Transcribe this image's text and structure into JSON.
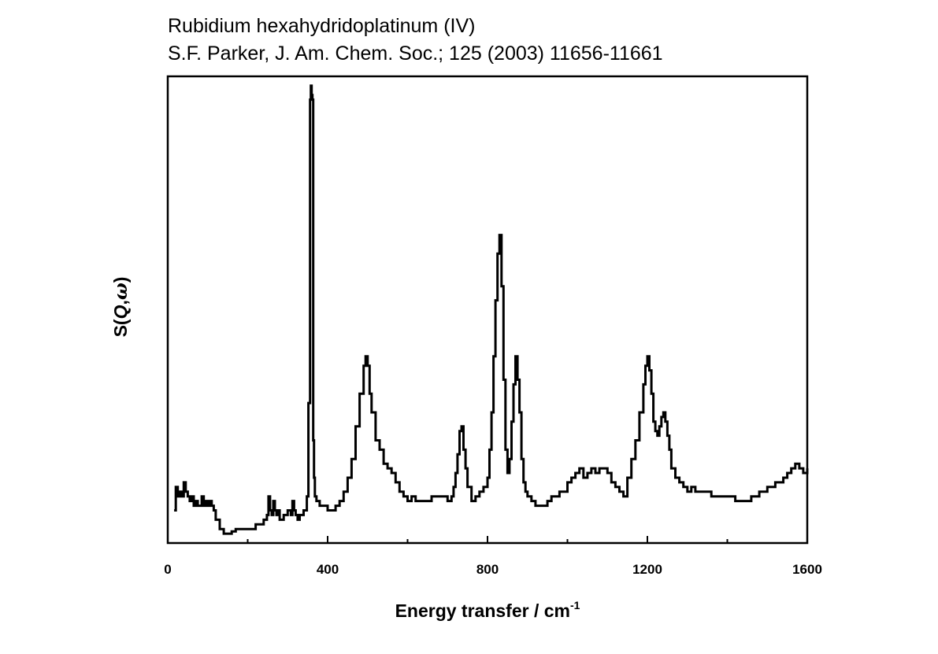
{
  "chart_data": {
    "type": "line",
    "title": "Rubidium hexahydridoplatinum (IV)",
    "subtitle": "S.F. Parker, J. Am. Chem. Soc.; 125 (2003) 11656-11661",
    "xlabel": {
      "text": "Energy transfer / cm",
      "superscript": "-1"
    },
    "ylabel": {
      "prefix": "S(",
      "q": "Q",
      "comma": ",",
      "omega": "ω",
      "suffix": ")"
    },
    "xlim": [
      0,
      1600
    ],
    "ylim": [
      0,
      100
    ],
    "x_ticks": [
      {
        "value": 0,
        "label": "0"
      },
      {
        "value": 400,
        "label": "400"
      },
      {
        "value": 800,
        "label": "800"
      },
      {
        "value": 1200,
        "label": "1200"
      },
      {
        "value": 1600,
        "label": "1600"
      }
    ],
    "x_minor_ticks": [
      200,
      600,
      1000,
      1400
    ],
    "y_tick_labels": false,
    "grid": false,
    "legend": "none",
    "series": [
      {
        "color": "#000000",
        "step": true,
        "x": [
          16,
          20,
          25,
          30,
          35,
          40,
          45,
          50,
          55,
          60,
          65,
          70,
          75,
          80,
          85,
          90,
          95,
          100,
          105,
          110,
          115,
          120,
          130,
          140,
          150,
          160,
          170,
          180,
          200,
          220,
          240,
          248,
          252,
          256,
          260,
          264,
          268,
          272,
          276,
          280,
          290,
          300,
          308,
          312,
          316,
          320,
          325,
          330,
          340,
          348,
          352,
          356,
          358,
          360,
          362,
          364,
          366,
          368,
          372,
          376,
          380,
          390,
          400,
          410,
          420,
          430,
          440,
          450,
          460,
          470,
          480,
          490,
          495,
          500,
          505,
          510,
          520,
          530,
          540,
          550,
          560,
          570,
          580,
          590,
          600,
          610,
          620,
          640,
          660,
          680,
          700,
          710,
          715,
          720,
          725,
          730,
          735,
          740,
          745,
          750,
          760,
          770,
          780,
          790,
          800,
          805,
          810,
          815,
          820,
          825,
          830,
          835,
          840,
          845,
          850,
          855,
          860,
          865,
          870,
          875,
          880,
          885,
          890,
          895,
          900,
          910,
          920,
          930,
          940,
          950,
          960,
          980,
          1000,
          1010,
          1020,
          1030,
          1040,
          1050,
          1060,
          1070,
          1080,
          1090,
          1100,
          1110,
          1120,
          1130,
          1140,
          1150,
          1160,
          1170,
          1180,
          1190,
          1195,
          1200,
          1205,
          1210,
          1215,
          1220,
          1225,
          1230,
          1235,
          1240,
          1245,
          1250,
          1255,
          1260,
          1270,
          1280,
          1290,
          1300,
          1310,
          1320,
          1340,
          1360,
          1380,
          1400,
          1420,
          1440,
          1460,
          1480,
          1500,
          1520,
          1540,
          1550,
          1560,
          1570,
          1580,
          1590,
          1600
        ],
        "y": [
          7,
          12,
          10,
          11,
          10,
          13,
          11,
          10,
          9,
          10,
          8,
          9,
          8,
          8,
          10,
          8,
          9,
          8,
          9,
          8,
          7,
          5,
          3,
          2,
          2,
          2.5,
          3,
          3,
          3,
          4,
          5,
          6,
          10,
          7,
          6,
          9,
          7,
          6,
          7,
          5,
          6,
          7,
          6,
          9,
          7,
          6,
          5,
          6,
          7,
          10,
          30,
          95,
          98,
          96,
          95,
          22,
          14,
          10,
          9,
          9,
          8,
          8,
          7,
          7,
          8,
          9,
          11,
          14,
          18,
          25,
          32,
          38,
          40,
          38,
          32,
          28,
          22,
          20,
          17,
          16,
          15,
          13,
          11,
          10,
          9,
          10,
          9,
          9,
          10,
          10,
          9,
          10,
          12,
          15,
          19,
          24,
          25,
          20,
          16,
          12,
          9,
          10,
          11,
          12,
          14,
          20,
          28,
          40,
          52,
          62,
          66,
          55,
          35,
          20,
          15,
          18,
          26,
          34,
          40,
          35,
          28,
          18,
          13,
          11,
          10,
          9,
          8,
          8,
          8,
          9,
          10,
          11,
          13,
          14,
          15,
          16,
          14,
          15,
          16,
          15,
          16,
          16,
          15,
          13,
          12,
          11,
          10,
          14,
          18,
          22,
          28,
          34,
          38,
          40,
          37,
          32,
          26,
          24,
          23,
          25,
          27,
          28,
          26,
          23,
          20,
          16,
          14,
          13,
          12,
          11,
          12,
          11,
          11,
          10,
          10,
          10,
          9,
          9,
          10,
          11,
          12,
          13,
          14,
          15,
          16,
          17,
          16,
          15,
          16
        ]
      }
    ]
  }
}
